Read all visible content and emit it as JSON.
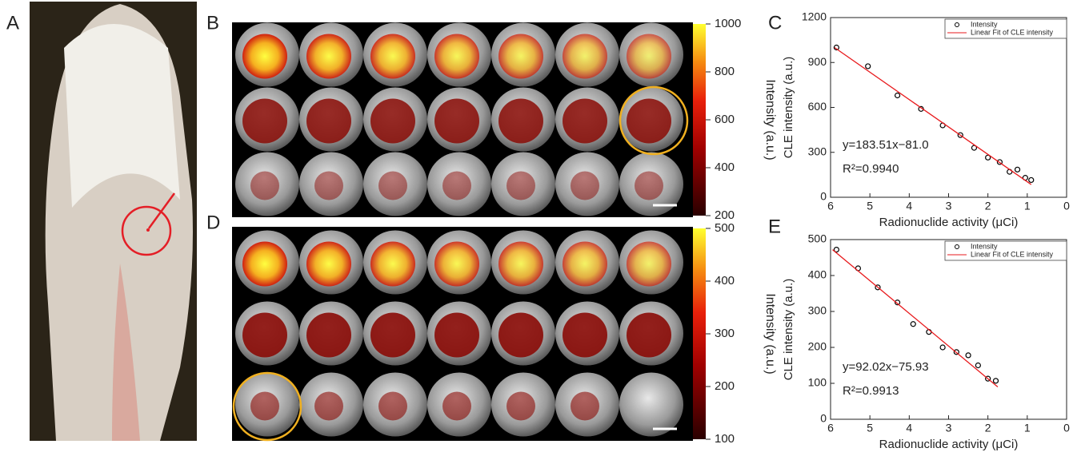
{
  "panel_labels": [
    "A",
    "B",
    "C",
    "D",
    "E"
  ],
  "colorbars": [
    {
      "label": "Intensity (a.u.)",
      "lim": [
        200,
        1000
      ],
      "ticks": [
        200,
        400,
        600,
        800,
        1000
      ]
    },
    {
      "label": "Intensity (a.u.)",
      "lim": [
        100,
        500
      ],
      "ticks": [
        100,
        200,
        300,
        400,
        500
      ]
    }
  ],
  "chart_data": [
    {
      "type": "scatter",
      "xlabel": "Radionuclide activity (μCi)",
      "ylabel": "CLE intensity (a.u.)",
      "xlim": [
        6,
        0
      ],
      "xticks": [
        6,
        5,
        4,
        3,
        2,
        1,
        0
      ],
      "ylim": [
        0,
        1200
      ],
      "yticks": [
        0,
        300,
        600,
        900,
        1200
      ],
      "annotations": [
        "y=183.51x−81.0",
        "R²=0.9940"
      ],
      "legend": "upper right",
      "series": [
        {
          "name": "Intensity",
          "color": "#000000",
          "x": [
            5.85,
            5.05,
            4.3,
            3.7,
            3.15,
            2.7,
            2.35,
            2.0,
            1.7,
            1.45,
            1.25,
            1.05,
            0.9
          ],
          "values": [
            1000,
            875,
            680,
            590,
            480,
            415,
            330,
            265,
            235,
            170,
            185,
            130,
            115
          ]
        },
        {
          "name": "Linear Fit of CLE intensity",
          "color": "#e8191c",
          "x": [
            5.9,
            0.9
          ],
          "values": [
            1000,
            85
          ]
        }
      ]
    },
    {
      "type": "scatter",
      "xlabel": "Radionuclide activity (μCi)",
      "ylabel": "CLE intensity (a.u.)",
      "xlim": [
        6,
        0
      ],
      "xticks": [
        6,
        5,
        4,
        3,
        2,
        1,
        0
      ],
      "ylim": [
        0,
        500
      ],
      "yticks": [
        0,
        100,
        200,
        300,
        400,
        500
      ],
      "annotations": [
        "y=92.02x−75.93",
        "R²=0.9913"
      ],
      "legend": "upper right",
      "series": [
        {
          "name": "Intensity",
          "color": "#000000",
          "x": [
            5.85,
            5.3,
            4.8,
            4.3,
            3.9,
            3.5,
            3.15,
            2.8,
            2.5,
            2.25,
            2.0,
            1.8
          ],
          "values": [
            472,
            420,
            367,
            325,
            265,
            243,
            200,
            187,
            178,
            150,
            113,
            107
          ]
        },
        {
          "name": "Linear Fit of CLE intensity",
          "color": "#e8191c",
          "x": [
            5.95,
            1.75
          ],
          "values": [
            472,
            90
          ]
        }
      ]
    }
  ]
}
